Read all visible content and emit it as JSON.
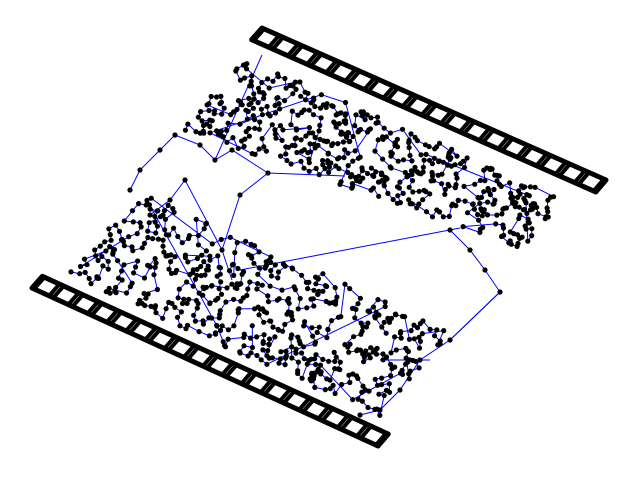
{
  "diagram": {
    "type": "node-link graph (tour over two dense point clusters)",
    "colors": {
      "background": "#ffffff",
      "node": "#000000",
      "edge": "#0000ff"
    },
    "labels": []
  }
}
